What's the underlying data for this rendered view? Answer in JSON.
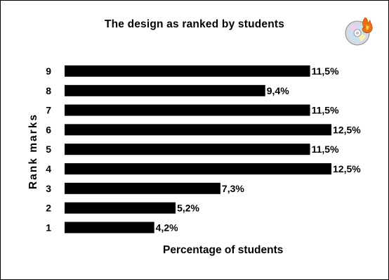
{
  "chart_data": {
    "type": "bar",
    "orientation": "horizontal",
    "title": "The design as ranked by students",
    "xlabel": "Percentage of students",
    "ylabel": "Rank marks",
    "categories": [
      "9",
      "8",
      "7",
      "6",
      "5",
      "4",
      "3",
      "2",
      "1"
    ],
    "values": [
      11.5,
      9.4,
      11.5,
      12.5,
      11.5,
      12.5,
      7.3,
      5.2,
      4.2
    ],
    "data_labels": [
      "11,5%",
      "9,4%",
      "11,5%",
      "12,5%",
      "11,5%",
      "12,5%",
      "7,3%",
      "5,2%",
      "4,2%"
    ],
    "xlim": [
      0,
      12.5
    ],
    "grid": false,
    "legend": "none",
    "bar_color": "#000000"
  },
  "icons": {
    "corner": "cd-burn-icon"
  }
}
